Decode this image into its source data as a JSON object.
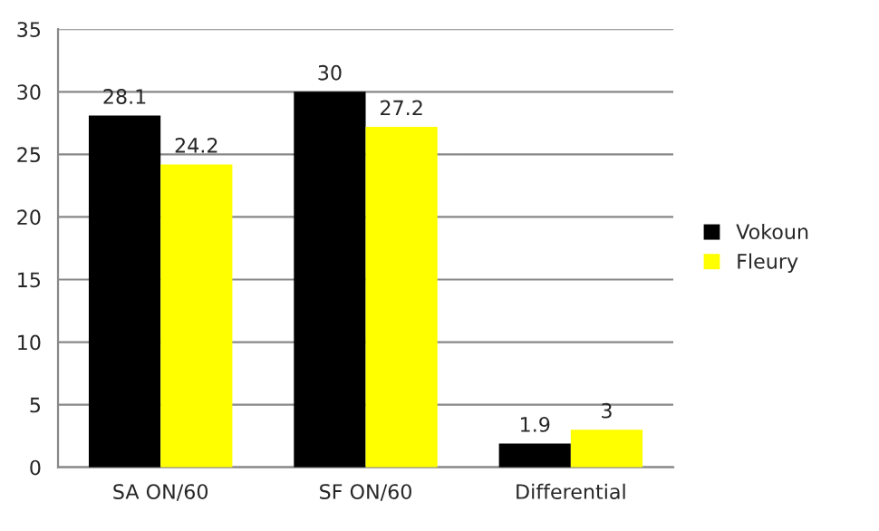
{
  "chart_data": {
    "type": "bar",
    "categories": [
      "SA ON/60",
      "SF ON/60",
      "Differential"
    ],
    "series": [
      {
        "name": "Vokoun",
        "color": "#000000",
        "values": [
          28.1,
          30,
          1.9
        ]
      },
      {
        "name": "Fleury",
        "color": "#ffff00",
        "values": [
          24.2,
          27.2,
          3
        ]
      }
    ],
    "ylim": [
      0,
      35
    ],
    "yticks": [
      0,
      5,
      10,
      15,
      20,
      25,
      30,
      35
    ],
    "grid": "y",
    "legend": "right",
    "data_labels": true
  }
}
